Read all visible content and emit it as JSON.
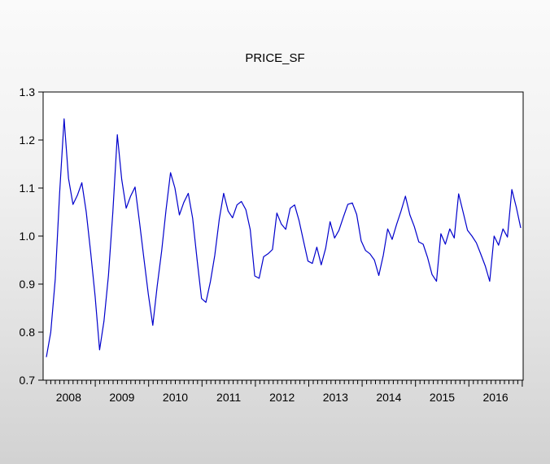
{
  "chart_data": {
    "type": "line",
    "title": "PRICE_SF",
    "frequency": "monthly",
    "x_start": "2008M01",
    "x_end": "2016M12",
    "x_tick_years": [
      2008,
      2009,
      2010,
      2011,
      2012,
      2013,
      2014,
      2015,
      2016
    ],
    "ylim": [
      0.7,
      1.3
    ],
    "yticks": [
      0.7,
      0.8,
      0.9,
      1.0,
      1.1,
      1.2,
      1.3
    ],
    "grid": false,
    "legend": false,
    "plot_bg": "#ffffff",
    "frame_bg_top": "#fafafa",
    "frame_bg_bottom": "#d2d2d2",
    "series": [
      {
        "name": "PRICE_SF",
        "color": "#0000cc",
        "values": [
          0.748,
          0.8,
          0.91,
          1.09,
          1.244,
          1.12,
          1.066,
          1.085,
          1.111,
          1.05,
          0.965,
          0.875,
          0.763,
          0.823,
          0.918,
          1.05,
          1.211,
          1.118,
          1.058,
          1.083,
          1.102,
          1.03,
          0.953,
          0.879,
          0.814,
          0.896,
          0.969,
          1.055,
          1.132,
          1.1,
          1.044,
          1.07,
          1.089,
          1.037,
          0.95,
          0.87,
          0.862,
          0.905,
          0.96,
          1.035,
          1.089,
          1.052,
          1.038,
          1.065,
          1.072,
          1.055,
          1.013,
          0.917,
          0.912,
          0.957,
          0.963,
          0.972,
          1.048,
          1.025,
          1.014,
          1.058,
          1.065,
          1.032,
          0.99,
          0.948,
          0.943,
          0.977,
          0.94,
          0.975,
          1.03,
          0.996,
          1.012,
          1.04,
          1.066,
          1.069,
          1.045,
          0.99,
          0.97,
          0.963,
          0.95,
          0.918,
          0.96,
          1.015,
          0.993,
          1.024,
          1.052,
          1.083,
          1.044,
          1.02,
          0.988,
          0.983,
          0.955,
          0.92,
          0.906,
          1.005,
          0.983,
          1.015,
          0.996,
          1.088,
          1.05,
          1.012,
          1.0,
          0.986,
          0.962,
          0.938,
          0.906,
          1.0,
          0.981,
          1.015,
          0.998,
          1.097,
          1.06,
          1.017
        ]
      }
    ]
  }
}
